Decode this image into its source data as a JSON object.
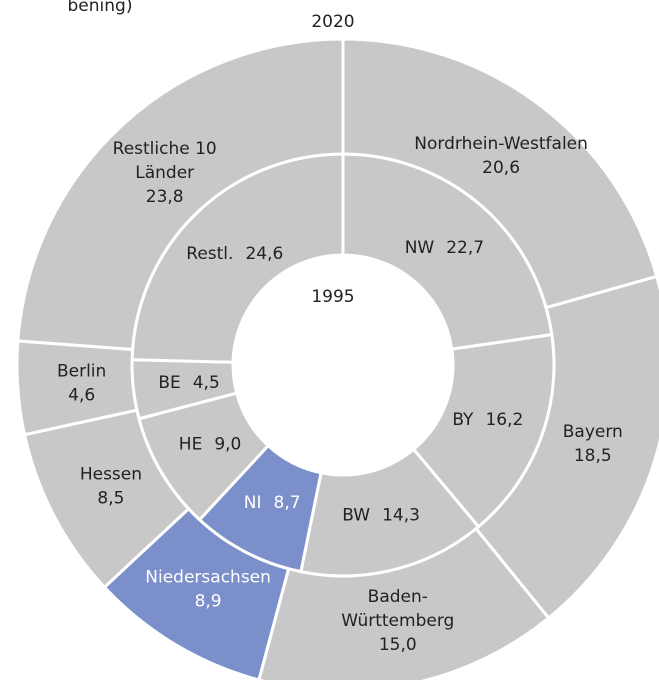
{
  "chart_data": {
    "type": "nested-donut",
    "note": "bening)",
    "series": [
      {
        "name": "1995",
        "ring": "inner",
        "categories": [
          "NW",
          "BY",
          "BW",
          "NI",
          "HE",
          "BE",
          "Restl."
        ],
        "values": [
          22.7,
          16.2,
          14.3,
          8.7,
          9.0,
          4.5,
          24.6
        ],
        "value_labels": [
          "22,7",
          "16,2",
          "14,3",
          "8,7",
          "9,0",
          "4,5",
          "24,6"
        ],
        "colors": [
          "#c8c8c8",
          "#c8c8c8",
          "#c8c8c8",
          "#7b8fca",
          "#c8c8c8",
          "#c8c8c8",
          "#c8c8c8"
        ]
      },
      {
        "name": "2020",
        "ring": "outer",
        "categories": [
          "Nordrhein-Westfalen",
          "Bayern",
          "Baden-\nWürttemberg",
          "Niedersachsen",
          "Hessen",
          "Berlin",
          "Restliche 10\nLänder"
        ],
        "values": [
          20.6,
          18.5,
          15.0,
          8.9,
          8.5,
          4.6,
          23.8
        ],
        "value_labels": [
          "20,6",
          "18,5",
          "15,0",
          "8,9",
          "8,5",
          "4,6",
          "23,8"
        ],
        "colors": [
          "#c8c8c8",
          "#c8c8c8",
          "#c8c8c8",
          "#7b8fca",
          "#c8c8c8",
          "#c8c8c8",
          "#c8c8c8"
        ]
      }
    ]
  }
}
